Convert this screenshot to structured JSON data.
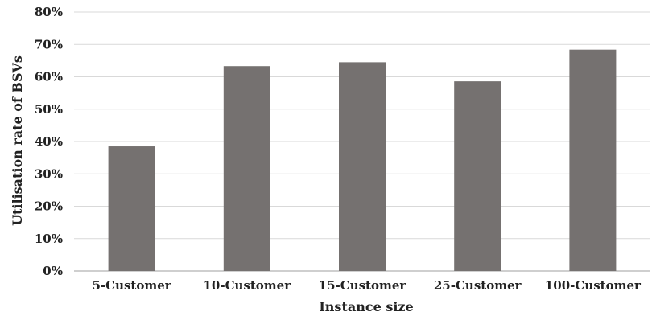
{
  "chart_data": {
    "type": "bar",
    "title": "",
    "xlabel": "Instance size",
    "ylabel": "Utilisation rate of BSVs",
    "categories": [
      "5-Customer",
      "10-Customer",
      "15-Customer",
      "25-Customer",
      "100-Customer"
    ],
    "values": [
      38.5,
      63.3,
      64.5,
      58.6,
      68.4
    ],
    "ylim": [
      0,
      80
    ],
    "yticks": [
      "0%",
      "10%",
      "20%",
      "30%",
      "40%",
      "50%",
      "60%",
      "70%",
      "80%"
    ],
    "grid": true,
    "legend": "none",
    "colors": {
      "bar": "#757170",
      "grid": "#d9d9d9",
      "axis": "#bfbfbf"
    }
  }
}
